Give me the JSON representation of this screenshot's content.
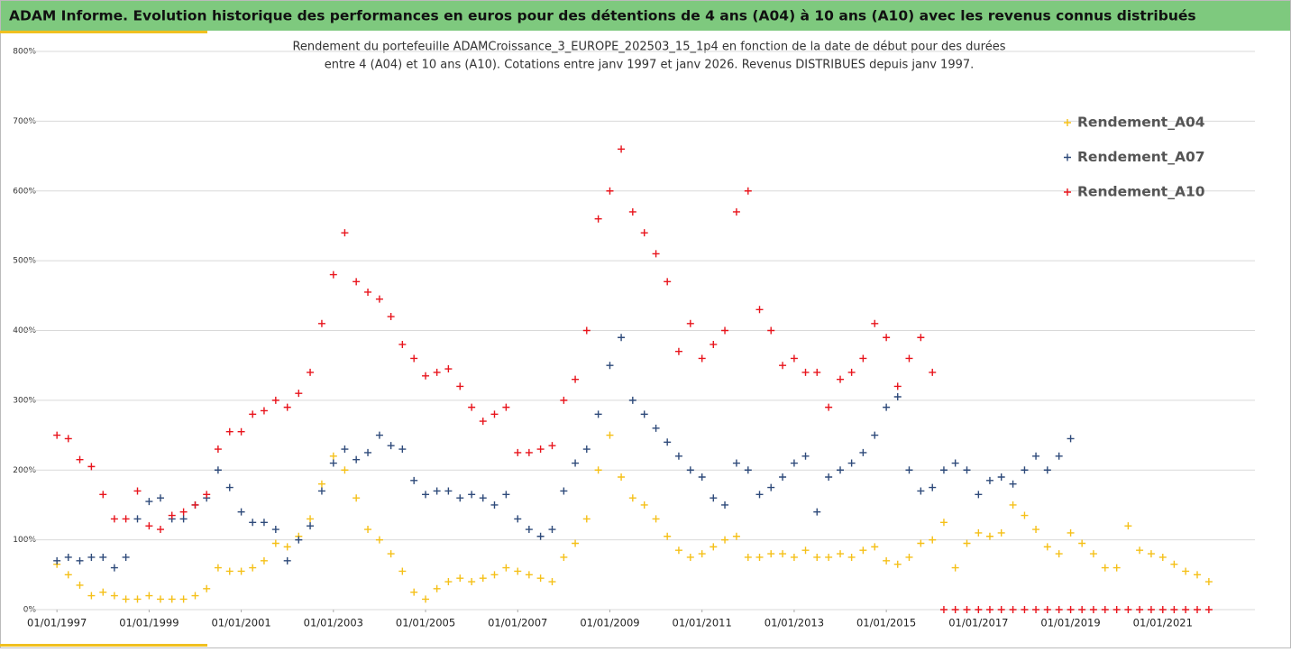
{
  "chart_data": {
    "type": "scatter",
    "title": "ADAM Informe. Evolution historique des performances en euros pour des détentions de 4 ans (A04) à 10 ans (A10) avec les revenus connus distribués",
    "subtitle": [
      "Rendement du portefeuille ADAMCroissance_3_EUROPE_202503_15_1p4  en fonction de la date de début pour des durées",
      "entre 4 (A04) et 10 ans (A10). Cotations entre janv 1997 et janv 2026. Revenus DISTRIBUES depuis janv 1997."
    ],
    "x": [
      "1997-01-01",
      "1997-04-01",
      "1997-07-01",
      "1997-10-01",
      "1998-01-01",
      "1998-04-01",
      "1998-07-01",
      "1998-10-01",
      "1999-01-01",
      "1999-04-01",
      "1999-07-01",
      "1999-10-01",
      "2000-01-01",
      "2000-04-01",
      "2000-07-01",
      "2000-10-01",
      "2001-01-01",
      "2001-04-01",
      "2001-07-01",
      "2001-10-01",
      "2002-01-01",
      "2002-04-01",
      "2002-07-01",
      "2002-10-01",
      "2003-01-01",
      "2003-04-01",
      "2003-07-01",
      "2003-10-01",
      "2004-01-01",
      "2004-04-01",
      "2004-07-01",
      "2004-10-01",
      "2005-01-01",
      "2005-04-01",
      "2005-07-01",
      "2005-10-01",
      "2006-01-01",
      "2006-04-01",
      "2006-07-01",
      "2006-10-01",
      "2007-01-01",
      "2007-04-01",
      "2007-07-01",
      "2007-10-01",
      "2008-01-01",
      "2008-04-01",
      "2008-07-01",
      "2008-10-01",
      "2009-01-01",
      "2009-04-01",
      "2009-07-01",
      "2009-10-01",
      "2010-01-01",
      "2010-04-01",
      "2010-07-01",
      "2010-10-01",
      "2011-01-01",
      "2011-04-01",
      "2011-07-01",
      "2011-10-01",
      "2012-01-01",
      "2012-04-01",
      "2012-07-01",
      "2012-10-01",
      "2013-01-01",
      "2013-04-01",
      "2013-07-01",
      "2013-10-01",
      "2014-01-01",
      "2014-04-01",
      "2014-07-01",
      "2014-10-01",
      "2015-01-01",
      "2015-04-01",
      "2015-07-01",
      "2015-10-01",
      "2016-01-01",
      "2016-04-01",
      "2016-07-01",
      "2016-10-01",
      "2017-01-01",
      "2017-04-01",
      "2017-07-01",
      "2017-10-01",
      "2018-01-01",
      "2018-04-01",
      "2018-07-01",
      "2018-10-01",
      "2019-01-01",
      "2019-04-01",
      "2019-07-01",
      "2019-10-01",
      "2020-01-01",
      "2020-04-01",
      "2020-07-01",
      "2020-10-01",
      "2021-01-01",
      "2021-04-01",
      "2021-07-01",
      "2021-10-01",
      "2022-01-01"
    ],
    "series": [
      {
        "name": "Rendement_A04",
        "color": "#f5c018",
        "values": [
          65,
          50,
          35,
          20,
          25,
          20,
          15,
          15,
          20,
          15,
          15,
          15,
          20,
          30,
          60,
          55,
          55,
          60,
          70,
          95,
          90,
          105,
          130,
          180,
          220,
          200,
          160,
          115,
          100,
          80,
          55,
          25,
          15,
          30,
          40,
          45,
          40,
          45,
          50,
          60,
          55,
          50,
          45,
          40,
          75,
          95,
          130,
          200,
          250,
          190,
          160,
          150,
          130,
          105,
          85,
          75,
          80,
          90,
          100,
          105,
          75,
          75,
          80,
          80,
          75,
          85,
          75,
          75,
          80,
          75,
          85,
          90,
          70,
          65,
          75,
          95,
          100,
          125,
          60,
          95,
          110,
          105,
          110,
          150,
          135,
          115,
          90,
          80,
          110,
          95,
          80,
          60,
          60,
          120,
          85,
          80,
          75,
          65,
          55,
          50,
          40
        ]
      },
      {
        "name": "Rendement_A07",
        "color": "#2e4a7a",
        "values": [
          70,
          75,
          70,
          75,
          75,
          60,
          75,
          130,
          155,
          160,
          130,
          130,
          150,
          160,
          200,
          175,
          140,
          125,
          125,
          115,
          70,
          100,
          120,
          170,
          210,
          230,
          215,
          225,
          250,
          235,
          230,
          185,
          165,
          170,
          170,
          160,
          165,
          160,
          150,
          165,
          130,
          115,
          105,
          115,
          170,
          210,
          230,
          280,
          350,
          390,
          300,
          280,
          260,
          240,
          220,
          200,
          190,
          160,
          150,
          210,
          200,
          165,
          175,
          190,
          210,
          220,
          140,
          190,
          200,
          210,
          225,
          250,
          290,
          305,
          200,
          170,
          175,
          200,
          210,
          200,
          165,
          185,
          190,
          180,
          200,
          220,
          200,
          220,
          245,
          null,
          null,
          null,
          null,
          null,
          null,
          null,
          null,
          null,
          null,
          null,
          null
        ]
      },
      {
        "name": "Rendement_A10",
        "color": "#e8141c",
        "values": [
          250,
          245,
          215,
          205,
          165,
          130,
          130,
          170,
          120,
          115,
          135,
          140,
          150,
          165,
          230,
          255,
          255,
          280,
          285,
          300,
          290,
          310,
          340,
          410,
          480,
          540,
          470,
          455,
          445,
          420,
          380,
          360,
          335,
          340,
          345,
          320,
          290,
          270,
          280,
          290,
          225,
          225,
          230,
          235,
          300,
          330,
          400,
          560,
          600,
          660,
          570,
          540,
          510,
          470,
          370,
          410,
          360,
          380,
          400,
          570,
          600,
          430,
          400,
          350,
          360,
          340,
          340,
          290,
          330,
          340,
          360,
          410,
          390,
          320,
          360,
          390,
          340,
          0,
          0,
          0,
          0,
          0,
          0,
          0,
          0,
          0,
          0,
          0,
          0,
          0,
          0,
          0,
          0,
          0,
          0,
          0,
          0,
          0,
          0,
          0,
          0
        ]
      }
    ],
    "xlim": [
      "1996-04-17",
      "2023-01-01"
    ],
    "xticks": [
      {
        "value": "1997-01-01",
        "label": "01/01/1997"
      },
      {
        "value": "1999-01-01",
        "label": "01/01/1999"
      },
      {
        "value": "2001-01-01",
        "label": "01/01/2001"
      },
      {
        "value": "2003-01-01",
        "label": "01/01/2003"
      },
      {
        "value": "2005-01-01",
        "label": "01/01/2005"
      },
      {
        "value": "2007-01-01",
        "label": "01/01/2007"
      },
      {
        "value": "2009-01-01",
        "label": "01/01/2009"
      },
      {
        "value": "2011-01-01",
        "label": "01/01/2011"
      },
      {
        "value": "2013-01-01",
        "label": "01/01/2013"
      },
      {
        "value": "2015-01-01",
        "label": "01/01/2015"
      },
      {
        "value": "2017-01-01",
        "label": "01/01/2017"
      },
      {
        "value": "2019-01-01",
        "label": "01/01/2019"
      },
      {
        "value": "2021-01-01",
        "label": "01/01/2021"
      }
    ],
    "ylim": [
      0,
      800
    ],
    "yticks": [
      {
        "value": 0,
        "label": "0%"
      },
      {
        "value": 100,
        "label": "100%"
      },
      {
        "value": 200,
        "label": "200%"
      },
      {
        "value": 300,
        "label": "300%"
      },
      {
        "value": 400,
        "label": "400%"
      },
      {
        "value": 500,
        "label": "500%"
      },
      {
        "value": 600,
        "label": "600%"
      },
      {
        "value": 700,
        "label": "700%"
      },
      {
        "value": 800,
        "label": "800%"
      }
    ],
    "grid": true,
    "legend": "upper right"
  }
}
